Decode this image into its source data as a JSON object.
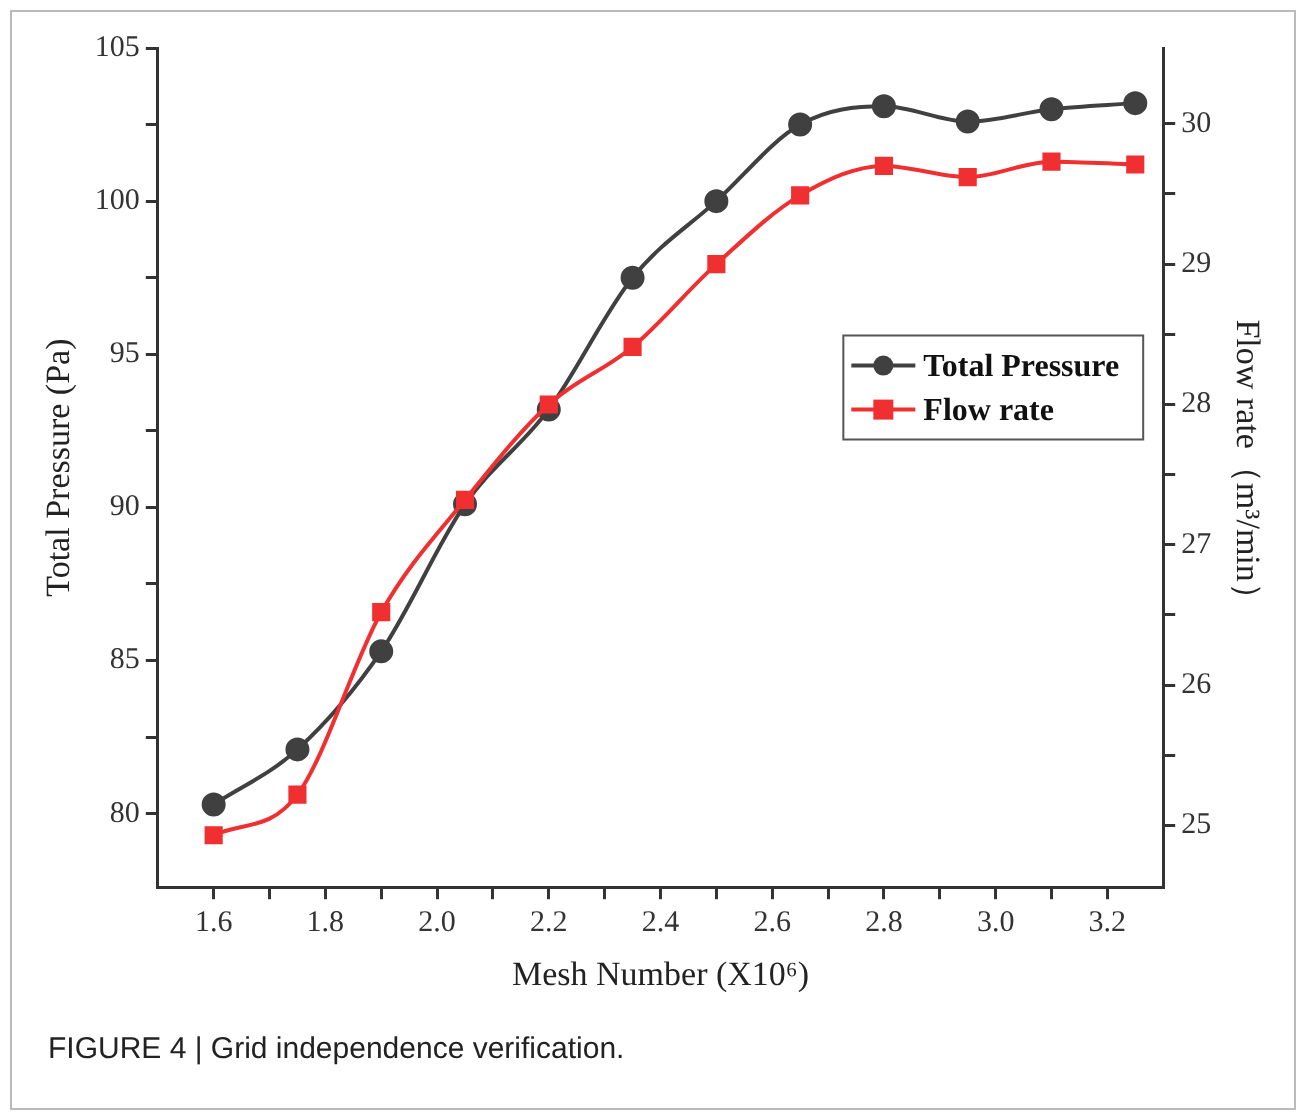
{
  "chart_data": {
    "type": "line",
    "xlabel": "Mesh Number (X10⁶)",
    "ylabel": "Total Pressure (Pa)",
    "y2label": "Flow rate（m³/min）",
    "x": [
      1.6,
      1.75,
      1.9,
      2.05,
      2.2,
      2.35,
      2.5,
      2.65,
      2.8,
      2.95,
      3.1,
      3.25
    ],
    "series": [
      {
        "name": "Total Pressure",
        "color": "#404040",
        "marker": "circle",
        "values": [
          80.3,
          82.1,
          85.3,
          90.1,
          93.2,
          97.5,
          100,
          102.5,
          103.1,
          102.6,
          103.0,
          103.2
        ]
      },
      {
        "name": "Flow rate",
        "color": "#f03030",
        "marker": "square",
        "axis": "y2",
        "values": [
          24.93,
          25.22,
          26.52,
          27.32,
          28.0,
          28.41,
          29.0,
          29.49,
          29.7,
          29.62,
          29.73,
          29.71
        ]
      }
    ],
    "xlim": [
      1.5,
      3.3
    ],
    "xticks": [
      {
        "value": 1.6,
        "label": "1.6"
      },
      {
        "value": 1.7,
        "label": null
      },
      {
        "value": 1.8,
        "label": "1.8"
      },
      {
        "value": 1.9,
        "label": null
      },
      {
        "value": 2.0,
        "label": "2.0"
      },
      {
        "value": 2.1,
        "label": null
      },
      {
        "value": 2.2,
        "label": "2.2"
      },
      {
        "value": 2.3,
        "label": null
      },
      {
        "value": 2.4,
        "label": "2.4"
      },
      {
        "value": 2.5,
        "label": null
      },
      {
        "value": 2.6,
        "label": "2.6"
      },
      {
        "value": 2.7,
        "label": null
      },
      {
        "value": 2.8,
        "label": "2.8"
      },
      {
        "value": 2.9,
        "label": null
      },
      {
        "value": 3.0,
        "label": "3.0"
      },
      {
        "value": 3.1,
        "label": null
      },
      {
        "value": 3.2,
        "label": "3.2"
      }
    ],
    "ylim": [
      77.6,
      105
    ],
    "yticks": [
      80,
      {
        "value": 82.5,
        "label": null
      },
      85,
      {
        "value": 87.5,
        "label": null
      },
      90,
      {
        "value": 92.5,
        "label": null
      },
      95,
      {
        "value": 97.5,
        "label": null
      },
      100,
      {
        "value": 102.5,
        "label": null
      },
      105
    ],
    "y2lim": [
      24.56,
      30.54
    ],
    "y2ticks": [
      25,
      {
        "value": 25.5,
        "label": null
      },
      26,
      {
        "value": 26.5,
        "label": null
      },
      27,
      {
        "value": 27.5,
        "label": null
      },
      28,
      {
        "value": 28.5,
        "label": null
      },
      29,
      {
        "value": 29.5,
        "label": null
      },
      30
    ],
    "legend": "right",
    "grid": false,
    "annotations": [
      "FIGURE 4 | Grid independence verification."
    ]
  }
}
